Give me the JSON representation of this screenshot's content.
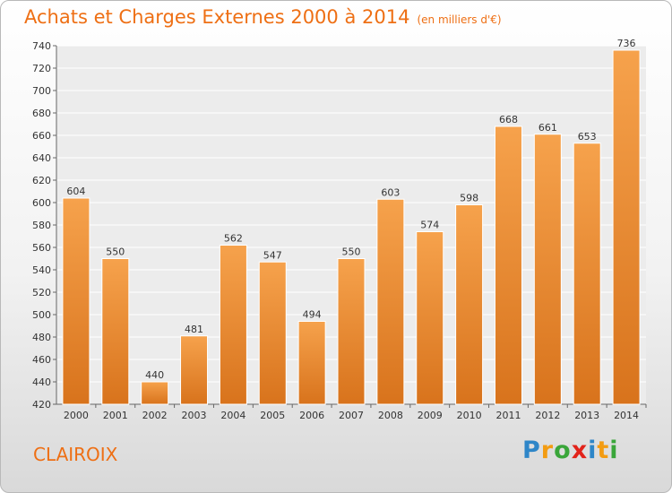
{
  "title": "Achats et Charges Externes 2000 à 2014",
  "subtitle": "(en milliers d'€)",
  "town": "CLAIROIX",
  "logo": {
    "text": "Proxiti",
    "letters": [
      "P",
      "r",
      "o",
      "x",
      "i",
      "t",
      "i"
    ],
    "colors": [
      "#2e86c8",
      "#f39c12",
      "#3aa63a",
      "#e2231a",
      "#2e86c8",
      "#f39c12",
      "#3aa63a"
    ]
  },
  "colors": {
    "bar_top": "#f6a24c",
    "bar_bottom": "#d8731c",
    "accent": "#ee6f14"
  },
  "chart_data": {
    "type": "bar",
    "categories": [
      "2000",
      "2001",
      "2002",
      "2003",
      "2004",
      "2005",
      "2006",
      "2007",
      "2008",
      "2009",
      "2010",
      "2011",
      "2012",
      "2013",
      "2014"
    ],
    "values": [
      604,
      550,
      440,
      481,
      562,
      547,
      494,
      550,
      603,
      574,
      598,
      668,
      661,
      653,
      736
    ],
    "title": "Achats et Charges Externes 2000 à 2014",
    "subtitle": "(en milliers d'€)",
    "ylim": [
      420,
      740
    ],
    "yticks": [
      420,
      440,
      460,
      480,
      500,
      520,
      540,
      560,
      580,
      600,
      620,
      640,
      660,
      680,
      700,
      720,
      740
    ],
    "grid": true
  }
}
